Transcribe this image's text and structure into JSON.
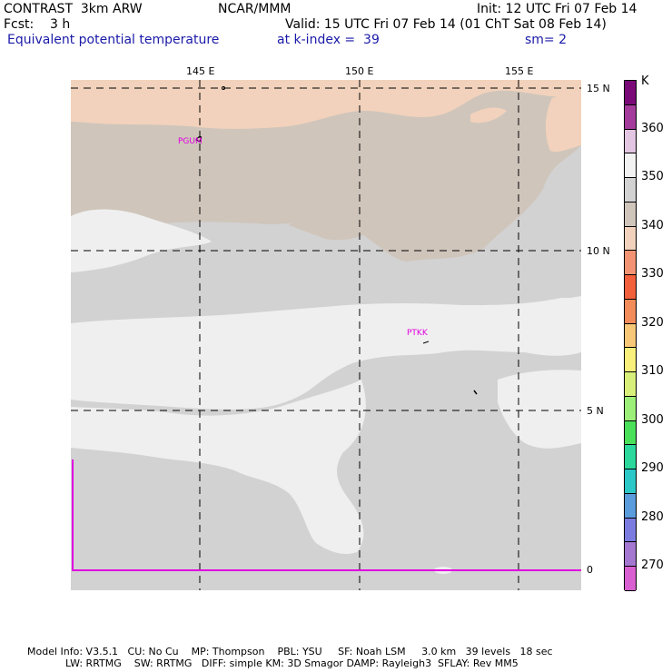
{
  "header": {
    "line1_left": "CONTRAST  3km ARW",
    "line1_center": "NCAR/MMM",
    "line1_right": "Init: 12 UTC Fri 07 Feb 14",
    "line2_left": "Fcst:    3 h",
    "line2_right": "Valid: 15 UTC Fri 07 Feb 14 (01 ChT Sat 08 Feb 14)",
    "line3_field": "Equivalent potential temperature",
    "line3_level": "at k-index =  39",
    "line3_smooth": "sm= 2"
  },
  "axes": {
    "lon_labels": [
      "145 E",
      "150 E",
      "155 E"
    ],
    "lat_labels": [
      "15 N",
      "10 N",
      "5 N",
      "0"
    ]
  },
  "stations": [
    {
      "name": "PGUM"
    },
    {
      "name": "PTKK"
    }
  ],
  "colorbar": {
    "unit": "K",
    "ticks": [
      "360",
      "350",
      "340",
      "330",
      "320",
      "310",
      "300",
      "290",
      "280",
      "270"
    ],
    "colors": [
      "#7a0a78",
      "#a43c9c",
      "#e2c6e2",
      "#f2f2f2",
      "#d2d2d2",
      "#cfc5bb",
      "#f2d2bc",
      "#f29474",
      "#f2603c",
      "#f28c5a",
      "#f8c878",
      "#f8f07a",
      "#d8f07a",
      "#9cf07a",
      "#4ae05a",
      "#2cd89c",
      "#2cc8c8",
      "#5a9cdc",
      "#7c7ce0",
      "#a478d0",
      "#d860d0"
    ]
  },
  "footer": {
    "line1": "Model Info: V3.5.1   CU: No Cu    MP: Thompson    PBL: YSU     SF: Noah LSM     3.0 km   39 levels   18 sec",
    "line2": "LW: RRTMG    SW: RRTMG   DIFF: simple KM: 3D Smagor DAMP: Rayleigh3  SFLAY: Rev MM5"
  },
  "map_colors": {
    "base": "#d2d2d2",
    "light": "#efefef",
    "tan": "#cfc5bb",
    "peach": "#f2d2bc",
    "boundary": "#e000e0"
  }
}
